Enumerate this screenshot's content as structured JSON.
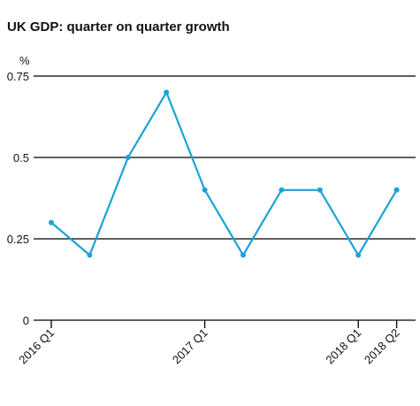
{
  "chart_data": {
    "type": "line",
    "title": "UK GDP: quarter on quarter growth",
    "ylabel": "%",
    "xlabel": "",
    "ylim": [
      0,
      0.75
    ],
    "yticks": [
      {
        "value": 0,
        "label": "0"
      },
      {
        "value": 0.25,
        "label": "0.25"
      },
      {
        "value": 0.5,
        "label": "0.5"
      },
      {
        "value": 0.75,
        "label": "0.75"
      }
    ],
    "gridlines": [
      0.25,
      0.5,
      0.75
    ],
    "x_tick_labels": [
      {
        "index": 0,
        "label": "2016 Q1"
      },
      {
        "index": 4,
        "label": "2017 Q1"
      },
      {
        "index": 8,
        "label": "2018 Q1"
      },
      {
        "index": 9,
        "label": "2018 Q2"
      }
    ],
    "x": [
      "2016 Q1",
      "2016 Q2",
      "2016 Q3",
      "2016 Q4",
      "2017 Q1",
      "2017 Q2",
      "2017 Q3",
      "2017 Q4",
      "2018 Q1",
      "2018 Q2"
    ],
    "series": [
      {
        "values": [
          0.3,
          0.2,
          0.5,
          0.7,
          0.4,
          0.2,
          0.4,
          0.4,
          0.2,
          0.4
        ],
        "color": "#1aa3d6"
      }
    ],
    "axis_color": "#000000"
  }
}
